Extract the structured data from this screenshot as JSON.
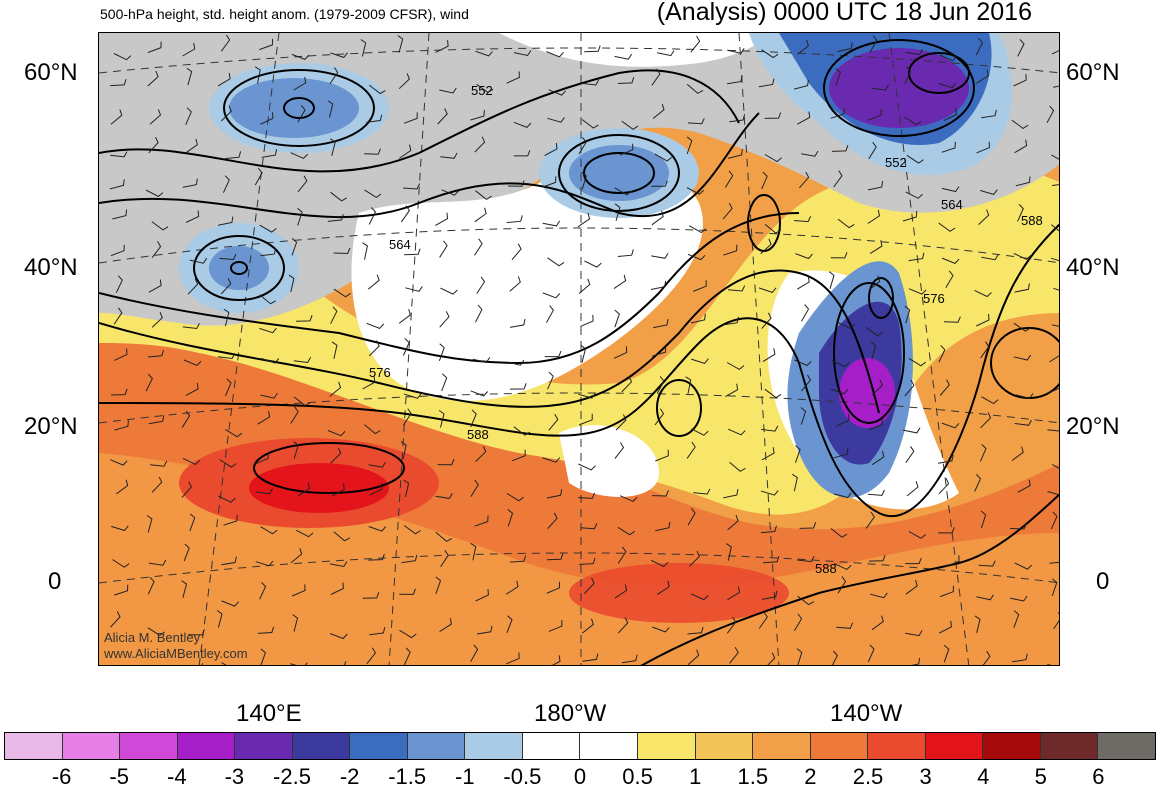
{
  "title_left": "500-hPa height, std. height anom. (1979-2009 CFSR), wind",
  "title_right": "(Analysis) 0000 UTC 18 Jun 2016",
  "lat_labels": [
    "60°N",
    "40°N",
    "20°N",
    "0"
  ],
  "lon_labels": [
    "140°E",
    "180°W",
    "140°W"
  ],
  "contour_labels": [
    "552",
    "564",
    "576",
    "588",
    "552",
    "564",
    "576",
    "588",
    "588"
  ],
  "credit": [
    "Alicia M. Bentley",
    "www.AliciaMBentley.com"
  ],
  "colorbar": {
    "labels": [
      "-6",
      "-5",
      "-4",
      "-3",
      "-2.5",
      "-2",
      "-1.5",
      "-1",
      "-0.5",
      "0",
      "0.5",
      "1",
      "1.5",
      "2",
      "2.5",
      "3",
      "4",
      "5",
      "6"
    ],
    "colors": [
      "#e8b8e6",
      "#e680e6",
      "#d048d8",
      "#a51ec8",
      "#6a2ab0",
      "#3c3a9e",
      "#3b6cc0",
      "#6a95d0",
      "#a9cbe6",
      "#ffffff",
      "#ffffff",
      "#f8e66a",
      "#f2c45a",
      "#f2a048",
      "#ee7a3a",
      "#ea4a2e",
      "#e3141a",
      "#a60a0a",
      "#6e2a2a",
      "#6e6a66"
    ]
  },
  "colors": {
    "land_gray": "#c8c8c8",
    "coast": "#555555"
  }
}
